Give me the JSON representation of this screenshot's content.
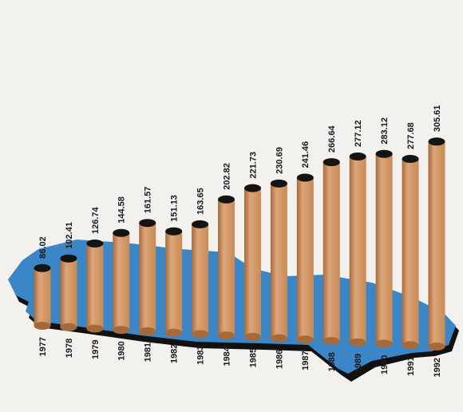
{
  "chart_data": {
    "type": "bar",
    "title": "",
    "xlabel": "",
    "ylabel": "",
    "categories": [
      "1977",
      "1978",
      "1979",
      "1980",
      "1981",
      "1982",
      "1983",
      "1984",
      "1985",
      "1986",
      "1987",
      "1988",
      "1989",
      "1990",
      "1991",
      "1992"
    ],
    "values": [
      86.02,
      102.41,
      126.74,
      144.58,
      161.57,
      151.13,
      163.65,
      202.82,
      221.73,
      230.69,
      241.46,
      266.64,
      277.12,
      283.12,
      277.68,
      305.61
    ],
    "value_labels": [
      "86.02",
      "102.41",
      "126.74",
      "144.58",
      "161.57",
      "151.13",
      "163.65",
      "202.82",
      "221.73",
      "230.69",
      "241.46",
      "266.64",
      "277.12",
      "283.12",
      "277.68",
      "305.61"
    ],
    "ylim": [
      0,
      320
    ],
    "grid": false,
    "legend": "none",
    "colors": {
      "bar": "#c98a55",
      "bar_shade": "#a56a3a",
      "bar_highlight": "#dca57a",
      "bar_top": "#141414",
      "map": "#3a86c6",
      "map_shadow": "#111111",
      "background": "#f3f1ee"
    }
  }
}
